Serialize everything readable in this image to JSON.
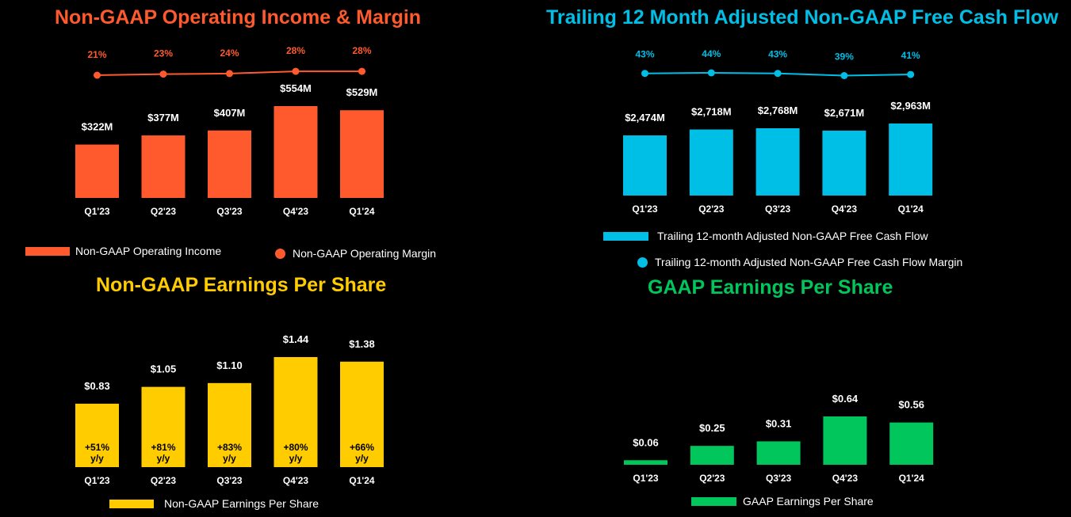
{
  "colors": {
    "orange": "#ff5a2d",
    "cyan": "#00bfe6",
    "yellow": "#ffcc00",
    "green": "#00c65c"
  },
  "chart_data": [
    {
      "id": "opinc",
      "type": "bar",
      "title": "Non-GAAP Operating Income & Margin",
      "categories": [
        "Q1'23",
        "Q2'23",
        "Q3'23",
        "Q4'23",
        "Q1'24"
      ],
      "series": [
        {
          "name": "Non-GAAP Operating Income",
          "values": [
            322,
            377,
            407,
            554,
            529
          ],
          "labels": [
            "$322M",
            "$377M",
            "$407M",
            "$554M",
            "$529M"
          ]
        },
        {
          "name": "Non-GAAP Operating Margin",
          "kind": "line",
          "values": [
            21,
            23,
            24,
            28,
            28
          ],
          "labels": [
            "21%",
            "23%",
            "24%",
            "28%",
            "28%"
          ]
        }
      ]
    },
    {
      "id": "fcf",
      "type": "bar",
      "title": "Trailing 12 Month Adjusted Non-GAAP Free Cash Flow",
      "categories": [
        "Q1'23",
        "Q2'23",
        "Q3'23",
        "Q4'23",
        "Q1'24"
      ],
      "series": [
        {
          "name": "Trailing 12-month Adjusted Non-GAAP Free Cash Flow",
          "values": [
            2474,
            2718,
            2768,
            2671,
            2963
          ],
          "labels": [
            "$2,474M",
            "$2,718M",
            "$2,768M",
            "$2,671M",
            "$2,963M"
          ]
        },
        {
          "name": "Trailing 12-month Adjusted Non-GAAP Free Cash Flow Margin",
          "kind": "line",
          "values": [
            43,
            44,
            43,
            39,
            41
          ],
          "labels": [
            "43%",
            "44%",
            "43%",
            "39%",
            "41%"
          ]
        }
      ]
    },
    {
      "id": "ngeps",
      "type": "bar",
      "title": "Non-GAAP Earnings Per Share",
      "categories": [
        "Q1'23",
        "Q2'23",
        "Q3'23",
        "Q4'23",
        "Q1'24"
      ],
      "series": [
        {
          "name": "Non-GAAP Earnings Per Share",
          "values": [
            0.83,
            1.05,
            1.1,
            1.44,
            1.38
          ],
          "labels": [
            "$0.83",
            "$1.05",
            "$1.10",
            "$1.44",
            "$1.38"
          ]
        }
      ],
      "growth_labels": [
        "+51%",
        "+81%",
        "+83%",
        "+80%",
        "+66%"
      ],
      "growth_suffix": "y/y"
    },
    {
      "id": "geps",
      "type": "bar",
      "title": "GAAP Earnings Per Share",
      "categories": [
        "Q1'23",
        "Q2'23",
        "Q3'23",
        "Q4'23",
        "Q1'24"
      ],
      "series": [
        {
          "name": "GAAP Earnings Per Share",
          "values": [
            0.06,
            0.25,
            0.31,
            0.64,
            0.56
          ],
          "labels": [
            "$0.06",
            "$0.25",
            "$0.31",
            "$0.64",
            "$0.56"
          ]
        }
      ]
    }
  ]
}
